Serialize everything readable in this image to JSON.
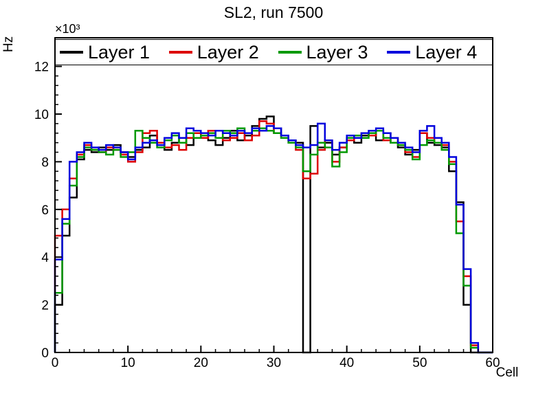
{
  "chart_data": {
    "type": "step-histogram",
    "title": "SL2, run 7500",
    "xlabel": "Cell",
    "ylabel": "Hz",
    "y_exponent_label": "×10³",
    "values_unit": "10^3 Hz",
    "xlim": [
      0,
      60
    ],
    "ylim": [
      0,
      13.2
    ],
    "xticks": [
      0,
      10,
      20,
      30,
      40,
      50,
      60
    ],
    "yticks": [
      0,
      2,
      4,
      6,
      8,
      10,
      12
    ],
    "x_minor_step": 2,
    "y_minor_step": 0.4,
    "bin_width": 1,
    "grid": false,
    "legend_position": "top-inside-full-width",
    "series": [
      {
        "name": "Layer 1",
        "color": "#000000",
        "values": [
          2.0,
          4.9,
          6.5,
          8.1,
          8.5,
          8.4,
          8.6,
          8.5,
          8.7,
          8.4,
          8.2,
          8.5,
          8.6,
          9.1,
          8.8,
          8.5,
          8.8,
          9.0,
          8.7,
          9.0,
          9.2,
          8.9,
          8.7,
          9.0,
          9.3,
          8.9,
          9.1,
          9.5,
          9.8,
          9.9,
          9.4,
          9.1,
          8.9,
          8.8,
          0.0,
          9.5,
          8.6,
          8.8,
          8.3,
          8.6,
          9.0,
          8.8,
          9.1,
          9.2,
          8.9,
          9.2,
          8.8,
          8.6,
          8.3,
          8.5,
          9.2,
          8.8,
          8.7,
          8.6,
          7.6,
          6.3,
          2.0,
          0.0,
          0.0,
          0.0
        ]
      },
      {
        "name": "Layer 2",
        "color": "#dd0000",
        "values": [
          4.9,
          6.0,
          7.3,
          8.3,
          8.7,
          8.5,
          8.4,
          8.6,
          8.5,
          8.3,
          8.0,
          8.4,
          9.2,
          9.3,
          8.8,
          8.6,
          8.7,
          8.5,
          9.0,
          9.2,
          9.0,
          9.3,
          9.3,
          8.9,
          9.0,
          9.2,
          8.9,
          9.1,
          9.7,
          9.6,
          9.2,
          9.0,
          8.8,
          8.5,
          7.3,
          7.5,
          8.5,
          8.9,
          8.0,
          8.6,
          8.9,
          9.0,
          9.2,
          9.1,
          9.3,
          8.9,
          9.0,
          8.7,
          8.4,
          8.2,
          9.2,
          9.0,
          8.8,
          8.7,
          8.0,
          5.5,
          3.2,
          0.3,
          0.0,
          0.0
        ]
      },
      {
        "name": "Layer 3",
        "color": "#009900",
        "values": [
          2.5,
          5.4,
          7.0,
          8.2,
          8.6,
          8.5,
          8.4,
          8.3,
          8.5,
          8.2,
          8.4,
          9.3,
          9.0,
          8.8,
          8.6,
          8.9,
          9.1,
          8.8,
          9.2,
          9.0,
          9.1,
          9.2,
          9.0,
          9.3,
          9.2,
          9.4,
          9.2,
          9.3,
          9.4,
          9.3,
          9.2,
          9.0,
          8.8,
          8.6,
          7.6,
          8.3,
          8.8,
          8.6,
          7.8,
          8.4,
          9.0,
          9.1,
          9.0,
          9.2,
          9.3,
          9.0,
          8.8,
          8.7,
          8.5,
          8.1,
          8.7,
          8.9,
          8.8,
          8.5,
          7.9,
          5.0,
          2.8,
          0.2,
          0.0,
          0.0
        ]
      },
      {
        "name": "Layer 4",
        "color": "#0000dd",
        "values": [
          3.9,
          5.6,
          8.0,
          8.4,
          8.8,
          8.6,
          8.5,
          8.7,
          8.6,
          8.4,
          8.1,
          8.6,
          8.8,
          8.9,
          8.7,
          9.0,
          9.2,
          9.0,
          9.4,
          9.3,
          9.2,
          9.1,
          9.3,
          9.2,
          9.1,
          9.3,
          9.2,
          9.4,
          9.3,
          9.5,
          9.4,
          9.1,
          8.9,
          8.7,
          8.6,
          8.7,
          9.6,
          8.9,
          8.5,
          8.8,
          9.1,
          9.0,
          9.2,
          9.3,
          9.4,
          9.2,
          9.0,
          8.8,
          8.6,
          8.4,
          9.3,
          9.5,
          9.0,
          8.8,
          8.2,
          6.2,
          3.5,
          0.4,
          0.0,
          0.0
        ]
      }
    ]
  }
}
